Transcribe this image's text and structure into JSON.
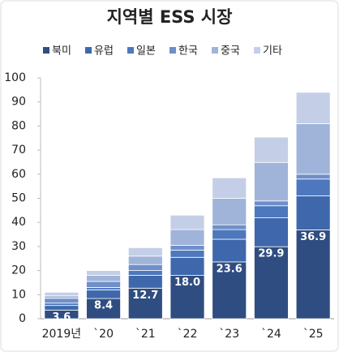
{
  "chart_data": {
    "type": "stacked-bar",
    "title": "지역별 ESS 시장",
    "categories": [
      "2019년",
      "`20",
      "`21",
      "`22",
      "`23",
      "`24",
      "`25"
    ],
    "series": [
      {
        "name": "북미",
        "color": "#2f4d80",
        "values": [
          3.6,
          8.4,
          12.7,
          18.0,
          23.6,
          29.9,
          36.9
        ],
        "value_labels": [
          "3.6",
          "8.4",
          "12.7",
          "18.0",
          "23.6",
          "29.9",
          "36.9"
        ]
      },
      {
        "name": "유럽",
        "color": "#3e68ab",
        "values": [
          1.9,
          3.6,
          5.3,
          7.5,
          9.4,
          12,
          14.1
        ]
      },
      {
        "name": "일본",
        "color": "#4d78bd",
        "values": [
          1,
          1,
          2,
          3,
          4,
          5,
          7
        ]
      },
      {
        "name": "한국",
        "color": "#6f8fca",
        "values": [
          2,
          2.5,
          2.5,
          2,
          2,
          2,
          2
        ]
      },
      {
        "name": "중국",
        "color": "#a0b4da",
        "values": [
          1,
          2.5,
          3.5,
          6.5,
          11,
          16,
          21
        ]
      },
      {
        "name": "기타",
        "color": "#c4cfe7",
        "values": [
          1.5,
          2,
          3.5,
          6,
          8.5,
          10.5,
          13
        ]
      }
    ],
    "ylim": [
      0,
      100
    ],
    "yticks": [
      0,
      10,
      20,
      30,
      40,
      50,
      60,
      70,
      80,
      90,
      100
    ]
  }
}
